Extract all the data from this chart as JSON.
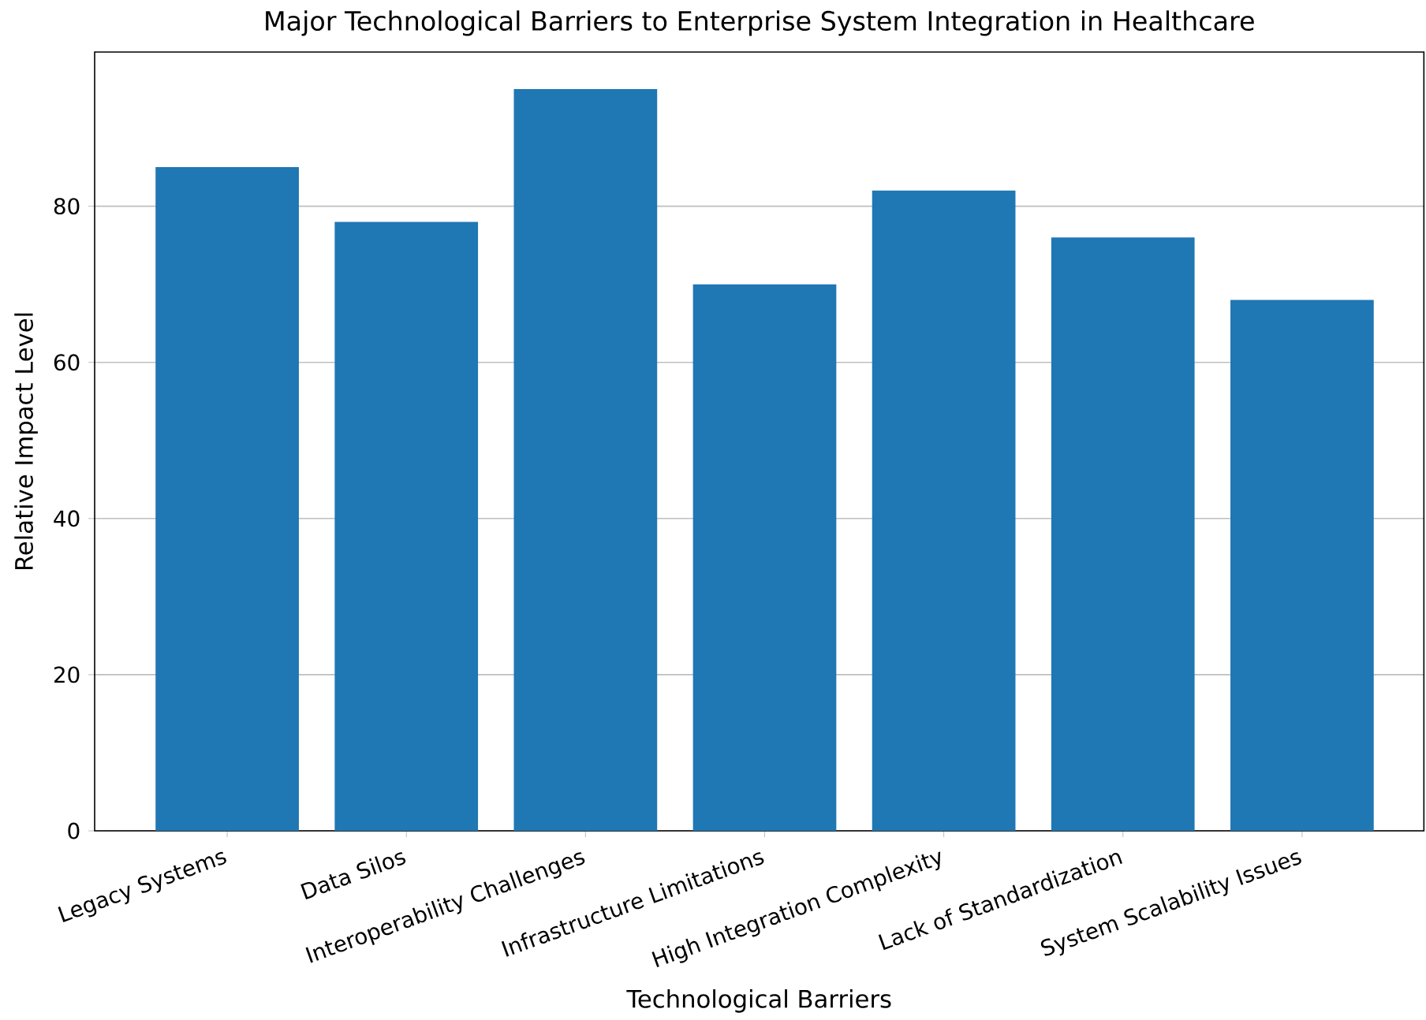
{
  "chart_data": {
    "type": "bar",
    "title": "Major Technological Barriers to Enterprise System Integration in Healthcare",
    "xlabel": "Technological Barriers",
    "ylabel": "Relative Impact Level",
    "categories": [
      "Legacy Systems",
      "Data Silos",
      "Interoperability Challenges",
      "Infrastructure Limitations",
      "High Integration Complexity",
      "Lack of Standardization",
      "System Scalability Issues"
    ],
    "values": [
      85,
      78,
      95,
      70,
      82,
      76,
      68
    ],
    "color": "#1f77b4",
    "ylim": [
      0,
      99.75
    ],
    "yticks": [
      0,
      20,
      40,
      60,
      80
    ],
    "grid": "y"
  }
}
